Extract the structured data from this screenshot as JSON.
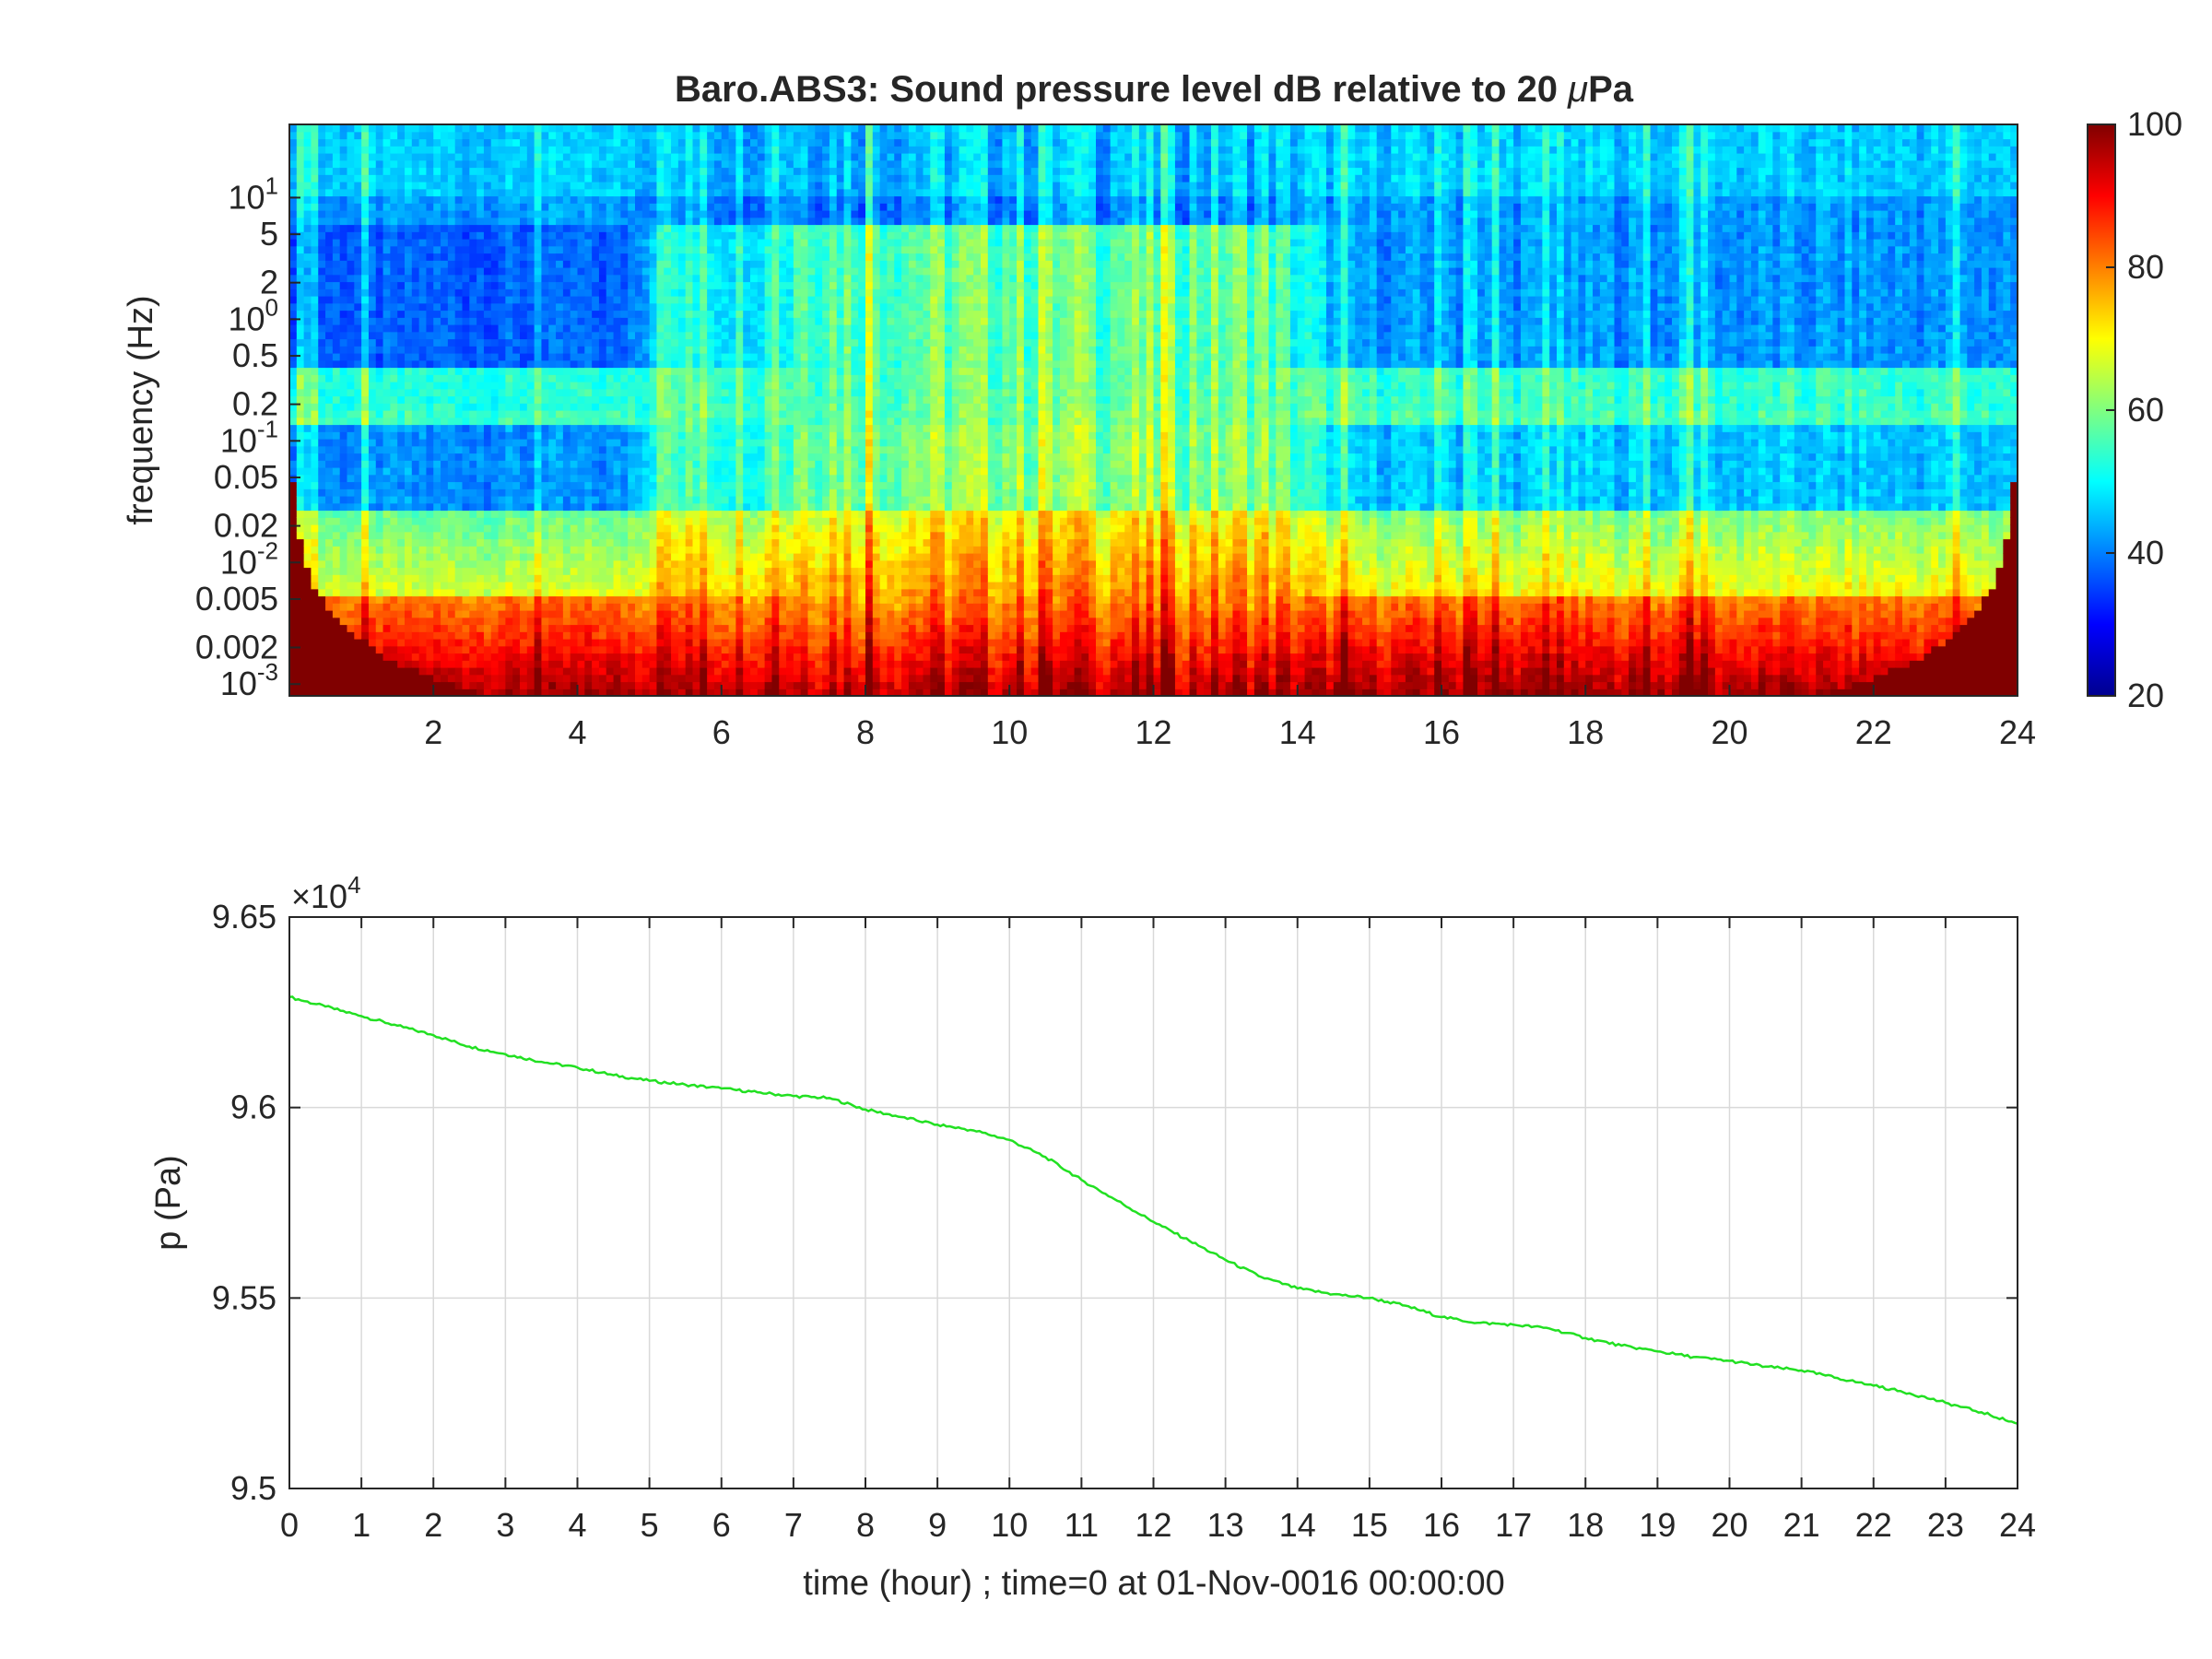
{
  "chart_data": [
    {
      "type": "heatmap",
      "title": "Baro.ABS3: Sound pressure level dB relative to 20 μPa",
      "title_prefix": "Baro.ABS3: Sound pressure level dB relative to 20 ",
      "title_mu": "μ",
      "title_unit": "Pa",
      "xlabel": "",
      "ylabel": "frequency (Hz)",
      "x_range": [
        0,
        24
      ],
      "x_ticks": [
        2,
        4,
        6,
        8,
        10,
        12,
        14,
        16,
        18,
        20,
        22,
        24
      ],
      "y_scale": "log",
      "y_range": [
        0.0008,
        40
      ],
      "y_ticks": [
        {
          "value": 0.001,
          "base": "10",
          "exp": "-3"
        },
        {
          "value": 0.002,
          "label": "0.002"
        },
        {
          "value": 0.005,
          "label": "0.005"
        },
        {
          "value": 0.01,
          "base": "10",
          "exp": "-2"
        },
        {
          "value": 0.02,
          "label": "0.02"
        },
        {
          "value": 0.05,
          "label": "0.05"
        },
        {
          "value": 0.1,
          "base": "10",
          "exp": "-1"
        },
        {
          "value": 0.2,
          "label": "0.2"
        },
        {
          "value": 0.5,
          "label": "0.5"
        },
        {
          "value": 1,
          "base": "10",
          "exp": "0"
        },
        {
          "value": 2,
          "label": "2"
        },
        {
          "value": 5,
          "label": "5"
        },
        {
          "value": 10,
          "base": "10",
          "exp": "1"
        }
      ],
      "colorbar": {
        "colormap": "jet",
        "range": [
          20,
          100
        ],
        "ticks": [
          20,
          40,
          60,
          80,
          100
        ],
        "unit": "dB"
      }
    },
    {
      "type": "line",
      "title": "",
      "xlabel": "time (hour) ; time=0 at 01-Nov-0016 00:00:00",
      "ylabel": "p (Pa)",
      "x_range": [
        0,
        24
      ],
      "x_ticks": [
        0,
        1,
        2,
        3,
        4,
        5,
        6,
        7,
        8,
        9,
        10,
        11,
        12,
        13,
        14,
        15,
        16,
        17,
        18,
        19,
        20,
        21,
        22,
        23,
        24
      ],
      "y_range": [
        95000,
        96500
      ],
      "y_ticks": [
        95000,
        95500,
        96000,
        96500
      ],
      "y_tick_labels": [
        "9.5",
        "9.55",
        "9.6",
        "9.65"
      ],
      "y_multiplier": {
        "base": "×10",
        "exp": "4"
      },
      "grid": true,
      "line_color": "#22e022",
      "series": [
        {
          "x": [
            0,
            0.5,
            1,
            1.5,
            2,
            2.5,
            3,
            3.5,
            4,
            4.5,
            5,
            5.5,
            6,
            6.5,
            7,
            7.5,
            8,
            8.5,
            9,
            9.5,
            10,
            10.5,
            11,
            11.5,
            12,
            12.5,
            13,
            13.5,
            14,
            14.5,
            15,
            15.5,
            16,
            16.5,
            17,
            17.5,
            18,
            18.5,
            19,
            19.5,
            20,
            20.5,
            21,
            21.5,
            22,
            22.5,
            23,
            23.5,
            24
          ],
          "y": [
            96290,
            96265,
            96240,
            96215,
            96190,
            96160,
            96140,
            96120,
            96105,
            96085,
            96070,
            96060,
            96050,
            96040,
            96030,
            96025,
            95995,
            95975,
            95955,
            95940,
            95915,
            95870,
            95810,
            95755,
            95700,
            95650,
            95600,
            95555,
            95525,
            95510,
            95500,
            95480,
            95450,
            95435,
            95430,
            95420,
            95395,
            95375,
            95360,
            95345,
            95335,
            95320,
            95310,
            95290,
            95270,
            95250,
            95225,
            95200,
            95170
          ]
        }
      ]
    }
  ]
}
